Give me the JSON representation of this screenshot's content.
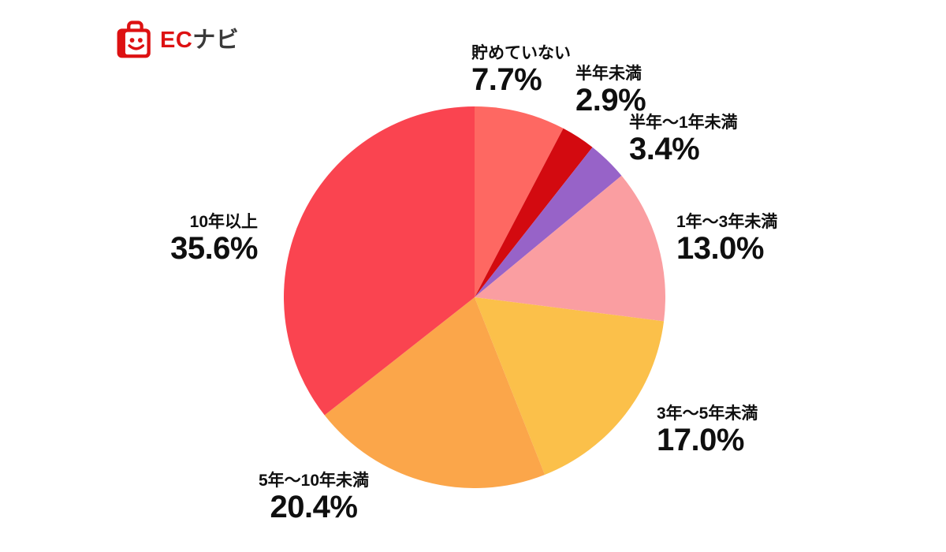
{
  "logo": {
    "brand_text_ec": "EC",
    "brand_text_navi": "ナビ",
    "icon": "shopping-bag-smiley-icon",
    "brand_red": "#dd1112",
    "brand_dark": "#3a3a3a"
  },
  "chart_data": {
    "type": "pie",
    "title": "",
    "start_angle_deg_from_top": 0,
    "direction": "clockwise",
    "background": "#ffffff",
    "legend_position": "labels-around-pie",
    "slices": [
      {
        "label": "貯めていない",
        "value": 7.7,
        "display": "7.7%",
        "color": "#fe6862"
      },
      {
        "label": "半年未満",
        "value": 2.9,
        "display": "2.9%",
        "color": "#d30a10"
      },
      {
        "label": "半年〜1年未満",
        "value": 3.4,
        "display": "3.4%",
        "color": "#9763c8"
      },
      {
        "label": "1年〜3年未満",
        "value": 13.0,
        "display": "13.0%",
        "color": "#fa9ea1"
      },
      {
        "label": "3年〜5年未満",
        "value": 17.0,
        "display": "17.0%",
        "color": "#fbc04a"
      },
      {
        "label": "5年〜10年未満",
        "value": 20.4,
        "display": "20.4%",
        "color": "#fba64a"
      },
      {
        "label": "10年以上",
        "value": 35.6,
        "display": "35.6%",
        "color": "#fa4450"
      }
    ]
  }
}
